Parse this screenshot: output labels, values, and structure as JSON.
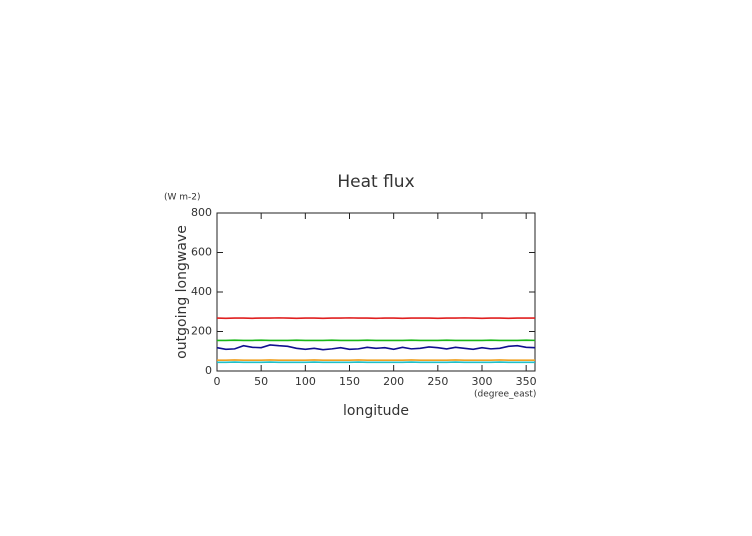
{
  "chart_data": {
    "type": "line",
    "title": "Heat flux",
    "xlabel": "longitude",
    "ylabel": "outgoing longwave",
    "x_unit": "(degree_east)",
    "y_unit": "(W m-2)",
    "x": [
      0,
      10,
      20,
      30,
      40,
      50,
      60,
      70,
      80,
      90,
      100,
      110,
      120,
      130,
      140,
      150,
      160,
      170,
      180,
      190,
      200,
      210,
      220,
      230,
      240,
      250,
      260,
      270,
      280,
      290,
      300,
      310,
      320,
      330,
      340,
      350,
      360
    ],
    "series": [
      {
        "color": "#e02020",
        "values": [
          268,
          267,
          268,
          268,
          267,
          268,
          268,
          269,
          268,
          267,
          268,
          268,
          267,
          268,
          268,
          269,
          268,
          268,
          267,
          268,
          268,
          267,
          268,
          268,
          268,
          267,
          268,
          268,
          269,
          268,
          267,
          268,
          268,
          267,
          268,
          268,
          268
        ]
      },
      {
        "color": "#18b818",
        "values": [
          155,
          155,
          156,
          155,
          155,
          156,
          155,
          155,
          155,
          156,
          155,
          155,
          155,
          156,
          155,
          155,
          155,
          156,
          155,
          155,
          155,
          155,
          156,
          155,
          155,
          155,
          156,
          155,
          155,
          155,
          155,
          156,
          155,
          155,
          155,
          156,
          155
        ]
      },
      {
        "color": "#101090",
        "values": [
          118,
          110,
          112,
          128,
          120,
          118,
          132,
          128,
          125,
          115,
          110,
          115,
          108,
          112,
          118,
          110,
          112,
          120,
          115,
          118,
          110,
          120,
          112,
          115,
          122,
          118,
          112,
          120,
          115,
          110,
          118,
          112,
          115,
          125,
          128,
          120,
          118
        ]
      },
      {
        "color": "#f0a020",
        "values": [
          55,
          55,
          56,
          55,
          55,
          55,
          56,
          55,
          55,
          55,
          55,
          56,
          55,
          55,
          55,
          55,
          56,
          55,
          55,
          55,
          55,
          55,
          56,
          55,
          55,
          55,
          55,
          56,
          55,
          55,
          55,
          55,
          56,
          55,
          55,
          55,
          55
        ]
      },
      {
        "color": "#20c0c8",
        "values": [
          44,
          44,
          45,
          44,
          44,
          44,
          45,
          44,
          44,
          44,
          44,
          45,
          44,
          44,
          44,
          44,
          45,
          44,
          44,
          44,
          44,
          44,
          45,
          44,
          44,
          44,
          44,
          45,
          44,
          44,
          44,
          44,
          45,
          44,
          44,
          44,
          44
        ]
      }
    ],
    "xlim": [
      0,
      360
    ],
    "xticks": [
      0,
      50,
      100,
      150,
      200,
      250,
      300,
      350
    ],
    "ylim": [
      0,
      800
    ],
    "yticks": [
      0,
      200,
      400,
      600,
      800
    ]
  }
}
